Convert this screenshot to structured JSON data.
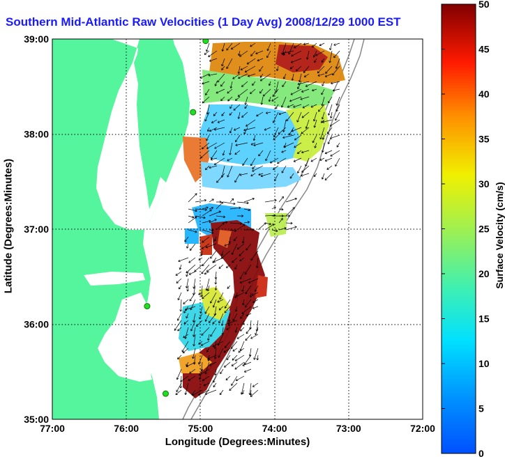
{
  "title": "Southern Mid-Atlantic Raw Velocities (1 Day Avg) 2008/12/29 1000 EST",
  "xlabel": "Longitude (Degrees:Minutes)",
  "ylabel": "Latitude (Degrees:Minutes)",
  "colorbar": {
    "label": "Surface Velocity (cm/s)",
    "ticks": [
      "0",
      "5",
      "10",
      "15",
      "20",
      "25",
      "30",
      "35",
      "40",
      "45",
      "50"
    ],
    "range": [
      0,
      50
    ],
    "colormap": "jet"
  },
  "axes": {
    "x_ticks": [
      "77:00",
      "76:00",
      "75:00",
      "74:00",
      "73:00",
      "72:00"
    ],
    "y_ticks": [
      "39:00",
      "38:00",
      "37:00",
      "36:00",
      "35:00"
    ],
    "lon_range": [
      -77,
      -72
    ],
    "lat_range": [
      35,
      39
    ]
  },
  "colors": {
    "land": "#55f59d",
    "title": "#1a1aff",
    "grid": "#000000",
    "station": "#22dd22"
  },
  "stations": [
    {
      "lon": -74.93,
      "lat": 38.98
    },
    {
      "lon": -75.1,
      "lat": 38.23
    },
    {
      "lon": -75.72,
      "lat": 36.19
    },
    {
      "lon": -75.47,
      "lat": 35.27
    }
  ]
}
